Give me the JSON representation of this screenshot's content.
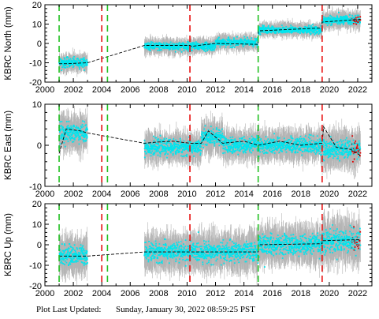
{
  "footer": {
    "label": "Plot Last Updated:",
    "value": "Sunday, January 30, 2022 08:59:25 PST"
  },
  "colors": {
    "error_bars": "#b4b4b4",
    "data_points": "#00e5ee",
    "recent_points": "#e00000",
    "model_line": "#000000",
    "red_events": "#e81010",
    "green_events": "#22c022"
  },
  "chart_data": [
    {
      "type": "scatter",
      "ylabel": "KBRC North (mm)",
      "xlim": [
        2000,
        2023
      ],
      "ylim": [
        -20,
        20
      ],
      "x_ticks": [
        2000,
        2002,
        2004,
        2006,
        2008,
        2010,
        2012,
        2014,
        2016,
        2018,
        2020,
        2022
      ],
      "y_ticks": [
        -20,
        -10,
        0,
        10,
        20
      ],
      "grid": false,
      "red_event_lines": [
        2004.0,
        2010.2,
        2019.5
      ],
      "green_event_lines": [
        2001.0,
        2004.4,
        2015.0
      ],
      "data_segments": [
        {
          "x_start": 2001.0,
          "x_end": 2003.0,
          "y_mean": -10,
          "spread": 2.5
        },
        {
          "x_start": 2007.0,
          "x_end": 2010.2,
          "y_mean": -1.5,
          "spread": 2.2
        },
        {
          "x_start": 2010.2,
          "x_end": 2012.0,
          "y_mean": -1.5,
          "spread": 2.2
        },
        {
          "x_start": 2012.0,
          "x_end": 2015.0,
          "y_mean": 0.5,
          "spread": 2.2
        },
        {
          "x_start": 2015.0,
          "x_end": 2019.5,
          "y_mean": 7.0,
          "spread": 2.0
        },
        {
          "x_start": 2019.5,
          "x_end": 2022.2,
          "y_mean": 12.0,
          "spread": 2.5
        }
      ],
      "model": {
        "x": [
          2001.0,
          2001.5,
          2003.0,
          2007.0,
          2010.2,
          2010.3,
          2012.0,
          2015.0,
          2015.0,
          2019.5,
          2019.5,
          2022.2
        ],
        "y": [
          -10.5,
          -10.5,
          -10.0,
          -1.0,
          -1.0,
          -1.5,
          0.0,
          -0.5,
          6.5,
          8.0,
          11.0,
          12.5
        ]
      }
    },
    {
      "type": "scatter",
      "ylabel": "KBRC East (mm)",
      "xlim": [
        2000,
        2023
      ],
      "ylim": [
        -10,
        10
      ],
      "x_ticks": [
        2000,
        2002,
        2004,
        2006,
        2008,
        2010,
        2012,
        2014,
        2016,
        2018,
        2020,
        2022
      ],
      "y_ticks": [
        -10,
        0,
        10
      ],
      "grid": false,
      "red_event_lines": [
        2004.0,
        2010.2,
        2019.5
      ],
      "green_event_lines": [
        2001.0,
        2004.4,
        2015.0
      ],
      "data_segments": [
        {
          "x_start": 2001.0,
          "x_end": 2003.0,
          "y_mean": 3.0,
          "spread": 2.5
        },
        {
          "x_start": 2007.0,
          "x_end": 2011.0,
          "y_mean": -0.5,
          "spread": 2.0
        },
        {
          "x_start": 2011.0,
          "x_end": 2012.5,
          "y_mean": 2.0,
          "spread": 2.2
        },
        {
          "x_start": 2012.5,
          "x_end": 2019.5,
          "y_mean": 0.0,
          "spread": 2.0
        },
        {
          "x_start": 2019.5,
          "x_end": 2022.2,
          "y_mean": -1.0,
          "spread": 2.5
        }
      ],
      "model": {
        "x": [
          2001.0,
          2001.5,
          2002.5,
          2003.0,
          2007.0,
          2008.0,
          2009.0,
          2010.2,
          2011.0,
          2011.5,
          2012.5,
          2014.0,
          2015.0,
          2016.5,
          2018.0,
          2019.5,
          2019.6,
          2020.5,
          2021.5,
          2022.2
        ],
        "y": [
          -2.0,
          4.0,
          3.5,
          3.0,
          0.5,
          0.8,
          1.0,
          0.5,
          0.5,
          3.5,
          0.5,
          1.0,
          0.0,
          1.0,
          0.0,
          0.5,
          4.5,
          -0.5,
          -1.0,
          -2.5
        ]
      }
    },
    {
      "type": "scatter",
      "ylabel": "KBRC Up (mm)",
      "xlim": [
        2000,
        2023
      ],
      "ylim": [
        -20,
        20
      ],
      "x_ticks": [
        2000,
        2002,
        2004,
        2006,
        2008,
        2010,
        2012,
        2014,
        2016,
        2018,
        2020,
        2022
      ],
      "y_ticks": [
        -20,
        -10,
        0,
        10,
        20
      ],
      "grid": false,
      "red_event_lines": [
        2004.0,
        2010.2,
        2019.5
      ],
      "green_event_lines": [
        2001.0,
        2004.4,
        2015.0
      ],
      "data_segments": [
        {
          "x_start": 2001.0,
          "x_end": 2003.0,
          "y_mean": -5.0,
          "spread": 5.0
        },
        {
          "x_start": 2007.0,
          "x_end": 2015.0,
          "y_mean": -3.5,
          "spread": 5.0
        },
        {
          "x_start": 2015.0,
          "x_end": 2019.5,
          "y_mean": 0.0,
          "spread": 5.0
        },
        {
          "x_start": 2019.5,
          "x_end": 2022.2,
          "y_mean": 2.0,
          "spread": 6.0
        }
      ],
      "model": {
        "x": [
          2001.0,
          2001.5,
          2003.0,
          2007.0,
          2010.2,
          2015.0,
          2015.0,
          2019.5,
          2019.5,
          2022.2
        ],
        "y": [
          -5.5,
          -5.5,
          -5.5,
          -3.5,
          -3.5,
          -3.5,
          0.0,
          0.5,
          2.0,
          2.5
        ]
      }
    }
  ]
}
